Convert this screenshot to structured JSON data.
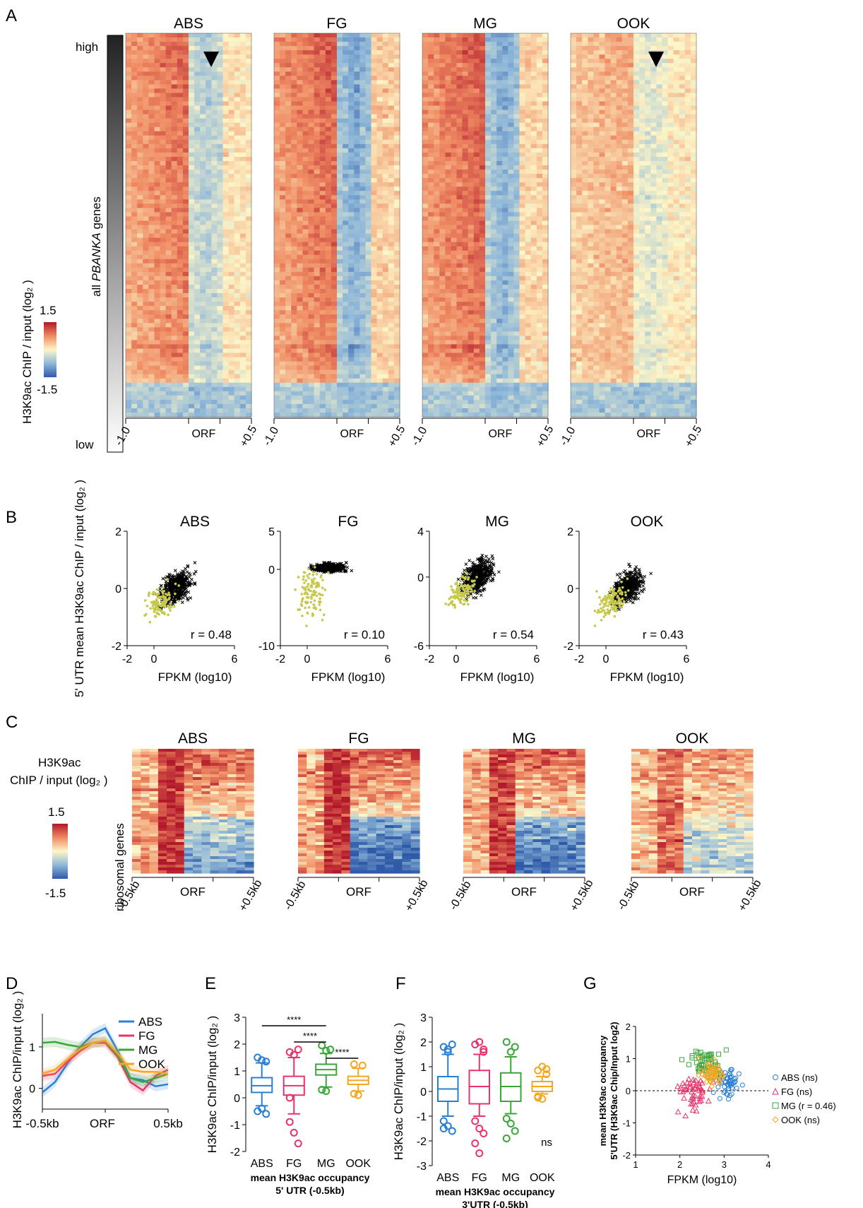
{
  "panel_letters": [
    "A",
    "B",
    "C",
    "D",
    "E",
    "F",
    "G"
  ],
  "conditions": [
    "ABS",
    "FG",
    "MG",
    "OOK"
  ],
  "colors": {
    "ABS": "#2a7fd4",
    "FG": "#e8336b",
    "MG": "#3aa63a",
    "OOK": "#f5a623",
    "heat_red": "#c0282b",
    "heat_mid": "#fcf4c2",
    "heat_blue": "#2e5fac",
    "scatter_black": "#000000",
    "scatter_yellow": "#c7c94a"
  },
  "panelA": {
    "colorbar_label": "H3K9ac  ChIP / input (log₂ )",
    "colorbar_max": "1.5",
    "colorbar_min": "-1.5",
    "gradient_high": "high",
    "gradient_low": "low",
    "gradient_label_pre": "all ",
    "gradient_label_em": "PBANKA",
    "gradient_label_post": " genes",
    "ticks": [
      "-1.0",
      "ORF",
      "+0.5"
    ],
    "arrow_panels": [
      "ABS",
      "OOK"
    ]
  },
  "panelC": {
    "legend_line1": "H3K9ac",
    "legend_line2": "ChIP / input (log₂ )",
    "colorbar_max": "1.5",
    "colorbar_min": "-1.5",
    "row_label": "ribosomal genes",
    "ticks": [
      "-0.5kb",
      "ORF",
      "+0.5kb"
    ]
  },
  "chart_data": [
    {
      "panel": "A",
      "type": "heatmap",
      "facets": [
        "ABS",
        "FG",
        "MG",
        "OOK"
      ],
      "x_ticks": [
        "-1.0",
        "ORF",
        "+0.5"
      ],
      "ylabel": "all PBANKA genes",
      "colorbar": {
        "label": "H3K9ac  ChIP / input (log₂ )",
        "min": -1.5,
        "max": 1.5
      }
    },
    {
      "panel": "B",
      "type": "scatter",
      "ylabel": "5' UTR mean H3K9ac ChIP / input (log₂ )",
      "xlabel": "FPKM (log10)",
      "facets": [
        {
          "title": "ABS",
          "r": "r = 0.48",
          "xticks": [
            "-2",
            "0",
            "6"
          ],
          "yticks": [
            "2",
            "0",
            "-2"
          ],
          "xlim": [
            -2,
            6
          ],
          "ylim": [
            -2,
            2
          ]
        },
        {
          "title": "FG",
          "r": "r = 0.10",
          "xticks": [
            "-2",
            "0",
            "6"
          ],
          "yticks": [
            "5",
            "0",
            "-10"
          ],
          "xlim": [
            -2,
            6
          ],
          "ylim": [
            -10,
            5
          ]
        },
        {
          "title": "MG",
          "r": "r = 0.54",
          "xticks": [
            "-2",
            "0",
            "6"
          ],
          "yticks": [
            "4",
            "0",
            "-6"
          ],
          "xlim": [
            -2,
            6
          ],
          "ylim": [
            -6,
            4
          ]
        },
        {
          "title": "OOK",
          "r": "r = 0.43",
          "xticks": [
            "-2",
            "0",
            "6"
          ],
          "yticks": [
            "2",
            "0",
            "-2"
          ],
          "xlim": [
            -2,
            6
          ],
          "ylim": [
            -2,
            2
          ]
        }
      ]
    },
    {
      "panel": "C",
      "type": "heatmap",
      "facets": [
        "ABS",
        "FG",
        "MG",
        "OOK"
      ],
      "x_ticks": [
        "-0.5kb",
        "ORF",
        "+0.5kb"
      ],
      "ylabel": "ribosomal genes",
      "colorbar": {
        "label": "H3K9ac ChIP / input (log₂ )",
        "min": -1.5,
        "max": 1.5
      }
    },
    {
      "panel": "D",
      "type": "line",
      "ylabel": "H3K9ac ChIP/input (log₂ )",
      "x_ticks": [
        "-0.5kb",
        "ORF",
        "0.5kb"
      ],
      "yticks": [
        "1",
        "0"
      ],
      "x": [
        -0.5,
        -0.4,
        -0.3,
        -0.2,
        -0.1,
        0.0,
        0.1,
        0.2,
        0.3,
        0.4,
        0.5
      ],
      "series": [
        {
          "name": "ABS",
          "values": [
            -0.1,
            0.15,
            0.6,
            1.0,
            1.3,
            1.45,
            0.9,
            0.25,
            0.2,
            0.05,
            0.1
          ]
        },
        {
          "name": "FG",
          "values": [
            0.3,
            0.35,
            0.65,
            0.9,
            1.1,
            1.1,
            0.75,
            0.15,
            -0.05,
            0.3,
            0.45
          ]
        },
        {
          "name": "MG",
          "values": [
            1.1,
            1.12,
            1.05,
            1.0,
            1.1,
            1.15,
            0.8,
            0.25,
            0.15,
            0.25,
            0.35
          ]
        },
        {
          "name": "OOK",
          "values": [
            0.35,
            0.45,
            0.7,
            0.95,
            1.1,
            1.15,
            0.85,
            0.45,
            0.4,
            0.4,
            0.35
          ]
        }
      ]
    },
    {
      "panel": "E",
      "type": "box",
      "ylabel": "H3K9ac ChIP/input (log₂ )",
      "xlabel_line1": "mean H3K9ac occupancy",
      "xlabel_line2": "5' UTR (-0.5kb)",
      "categories": [
        "ABS",
        "FG",
        "MG",
        "OOK"
      ],
      "ylim": [
        -2,
        3
      ],
      "yticks": [
        "3",
        "2",
        "1",
        "0",
        "-1",
        "-2"
      ],
      "boxes": [
        {
          "name": "ABS",
          "whisker_low": -0.3,
          "q1": 0.2,
          "median": 0.45,
          "q3": 0.75,
          "whisker_high": 1.3,
          "outliers": [
            -0.5,
            -0.4,
            -0.6,
            1.5,
            1.4,
            1.35
          ]
        },
        {
          "name": "FG",
          "whisker_low": -0.6,
          "q1": 0.1,
          "median": 0.45,
          "q3": 0.8,
          "whisker_high": 1.5,
          "outliers": [
            -0.9,
            -1.3,
            -1.7,
            0.0,
            1.6,
            1.8,
            1.7
          ]
        },
        {
          "name": "MG",
          "whisker_low": 0.4,
          "q1": 0.85,
          "median": 1.05,
          "q3": 1.25,
          "whisker_high": 1.65,
          "outliers": [
            0.3,
            0.25,
            1.8,
            1.95,
            1.75
          ]
        },
        {
          "name": "OOK",
          "whisker_low": 0.25,
          "q1": 0.5,
          "median": 0.65,
          "q3": 0.8,
          "whisker_high": 1.1,
          "outliers": [
            0.15,
            0.1,
            1.2,
            1.25
          ]
        }
      ],
      "significance": [
        {
          "from": "ABS",
          "to": "MG",
          "label": "****"
        },
        {
          "from": "FG",
          "to": "MG",
          "label": "****"
        },
        {
          "from": "MG",
          "to": "OOK",
          "label": "****"
        }
      ]
    },
    {
      "panel": "F",
      "type": "box",
      "ylabel": "H3K9ac ChIP/input (log₂ )",
      "xlabel_line1": "mean H3K9ac occupancy",
      "xlabel_line2": "3'UTR (-0.5kb)",
      "categories": [
        "ABS",
        "FG",
        "MG",
        "OOK"
      ],
      "ylim": [
        -3,
        3
      ],
      "yticks": [
        "3",
        "2",
        "1",
        "0",
        "-1",
        "-2",
        "-3"
      ],
      "annotation": "ns",
      "boxes": [
        {
          "name": "ABS",
          "whisker_low": -1.0,
          "q1": -0.4,
          "median": 0.1,
          "q3": 0.6,
          "whisker_high": 1.5,
          "outliers": [
            -1.2,
            -1.4,
            -1.6,
            -1.5,
            1.7,
            1.9,
            1.8,
            1.6
          ]
        },
        {
          "name": "FG",
          "whisker_low": -1.0,
          "q1": -0.5,
          "median": 0.2,
          "q3": 0.85,
          "whisker_high": 1.5,
          "outliers": [
            -1.2,
            -1.5,
            -1.7,
            -2.1,
            -2.5,
            1.7,
            1.9,
            2.0,
            1.6
          ]
        },
        {
          "name": "MG",
          "whisker_low": -0.9,
          "q1": -0.4,
          "median": 0.2,
          "q3": 0.75,
          "whisker_high": 1.4,
          "outliers": [
            -1.1,
            -1.3,
            -1.6,
            -1.9,
            1.6,
            1.8,
            2.0
          ]
        },
        {
          "name": "OOK",
          "whisker_low": -0.1,
          "q1": 0.0,
          "median": 0.2,
          "q3": 0.4,
          "whisker_high": 0.6,
          "outliers": [
            -0.2,
            -0.3,
            0.7,
            0.85,
            1.0,
            0.9,
            -0.25
          ]
        }
      ]
    },
    {
      "panel": "G",
      "type": "scatter",
      "ylabel_line1": "mean H3K9ac occupancy",
      "ylabel_line2": "5'UTR (H3K9ac Chip/Input log2)",
      "xlabel": "FPKM (log10)",
      "xlim": [
        1,
        4
      ],
      "ylim": [
        -2,
        2
      ],
      "xticks": [
        "1",
        "2",
        "3",
        "4"
      ],
      "yticks": [
        "2",
        "1",
        "0",
        "-1",
        "-2"
      ],
      "legend": [
        {
          "name": "ABS (ns)",
          "marker": "circle"
        },
        {
          "name": "FG  (ns)",
          "marker": "triangle"
        },
        {
          "name": "MG (r =  0.46)",
          "marker": "square"
        },
        {
          "name": "OOK (ns)",
          "marker": "diamond"
        }
      ]
    }
  ]
}
